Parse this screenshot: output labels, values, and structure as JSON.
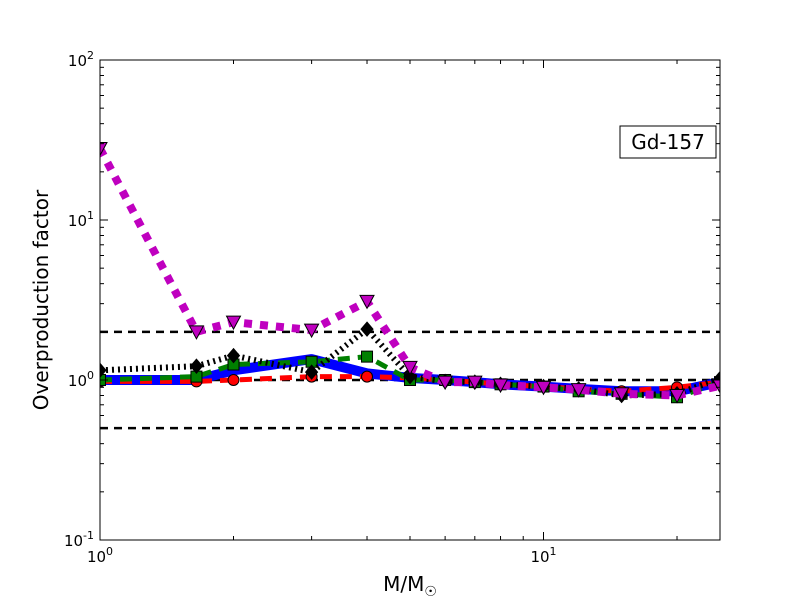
{
  "chart_data": {
    "type": "line",
    "x_scale": "log",
    "y_scale": "log",
    "xlim": [
      1,
      25
    ],
    "ylim": [
      0.1,
      100
    ],
    "xlabel": "M/M",
    "xlabel_sub": "☉",
    "ylabel": "Overproduction factor",
    "x_ticks": [
      {
        "value": 1,
        "base": "10",
        "exp": "0"
      },
      {
        "value": 10,
        "base": "10",
        "exp": "1"
      }
    ],
    "y_ticks": [
      {
        "value": 0.1,
        "base": "10",
        "exp": "-1"
      },
      {
        "value": 1,
        "base": "10",
        "exp": "0"
      },
      {
        "value": 10,
        "base": "10",
        "exp": "1"
      },
      {
        "value": 100,
        "base": "10",
        "exp": "2"
      }
    ],
    "annotation": "Gd-157",
    "annotation_position": "top-right",
    "reference_lines": [
      {
        "y": 2.0,
        "color": "#000000"
      },
      {
        "y": 1.0,
        "color": "#000000"
      },
      {
        "y": 0.5,
        "color": "#000000"
      }
    ],
    "series": [
      {
        "color": "#0000ff",
        "marker": "none",
        "style": "solid",
        "x": [
          1,
          1.65,
          2,
          3,
          4,
          5,
          6,
          7,
          8,
          10,
          12,
          15,
          20,
          25
        ],
        "y": [
          1.0,
          1.0,
          1.15,
          1.35,
          1.1,
          1.03,
          1.0,
          0.97,
          0.94,
          0.91,
          0.88,
          0.85,
          0.85,
          0.97
        ]
      },
      {
        "color": "#ff0000",
        "marker": "circle",
        "style": "dashed",
        "x": [
          1,
          1.65,
          2,
          3,
          4,
          5,
          6,
          7,
          8,
          10,
          12,
          15,
          20,
          25
        ],
        "y": [
          0.98,
          0.98,
          1.0,
          1.05,
          1.05,
          1.03,
          1.0,
          0.97,
          0.94,
          0.91,
          0.88,
          0.85,
          0.9,
          0.97
        ]
      },
      {
        "color": "#008000",
        "marker": "square",
        "style": "dashed",
        "x": [
          1,
          1.65,
          2,
          3,
          4,
          5,
          6,
          7,
          8,
          10,
          12,
          15,
          20,
          25
        ],
        "y": [
          1.0,
          1.05,
          1.25,
          1.3,
          1.4,
          1.0,
          1.0,
          0.97,
          0.94,
          0.91,
          0.85,
          0.82,
          0.78,
          0.97
        ]
      },
      {
        "color": "#000000",
        "marker": "diamond",
        "style": "dotted",
        "x": [
          1,
          1.65,
          2,
          3,
          4,
          5,
          6,
          7,
          8,
          10,
          12,
          15,
          20,
          25
        ],
        "y": [
          1.15,
          1.22,
          1.42,
          1.12,
          2.08,
          1.05,
          0.98,
          0.97,
          0.94,
          0.91,
          0.88,
          0.8,
          0.82,
          1.02
        ]
      },
      {
        "color": "#bf00bf",
        "marker": "triangle-down",
        "style": "dotted",
        "x": [
          1,
          1.65,
          2,
          3,
          4,
          5,
          6,
          7,
          8,
          10,
          12,
          15,
          20,
          25
        ],
        "y": [
          28,
          2.0,
          2.3,
          2.05,
          3.1,
          1.2,
          0.97,
          0.97,
          0.93,
          0.9,
          0.87,
          0.82,
          0.8,
          0.92
        ]
      }
    ]
  }
}
